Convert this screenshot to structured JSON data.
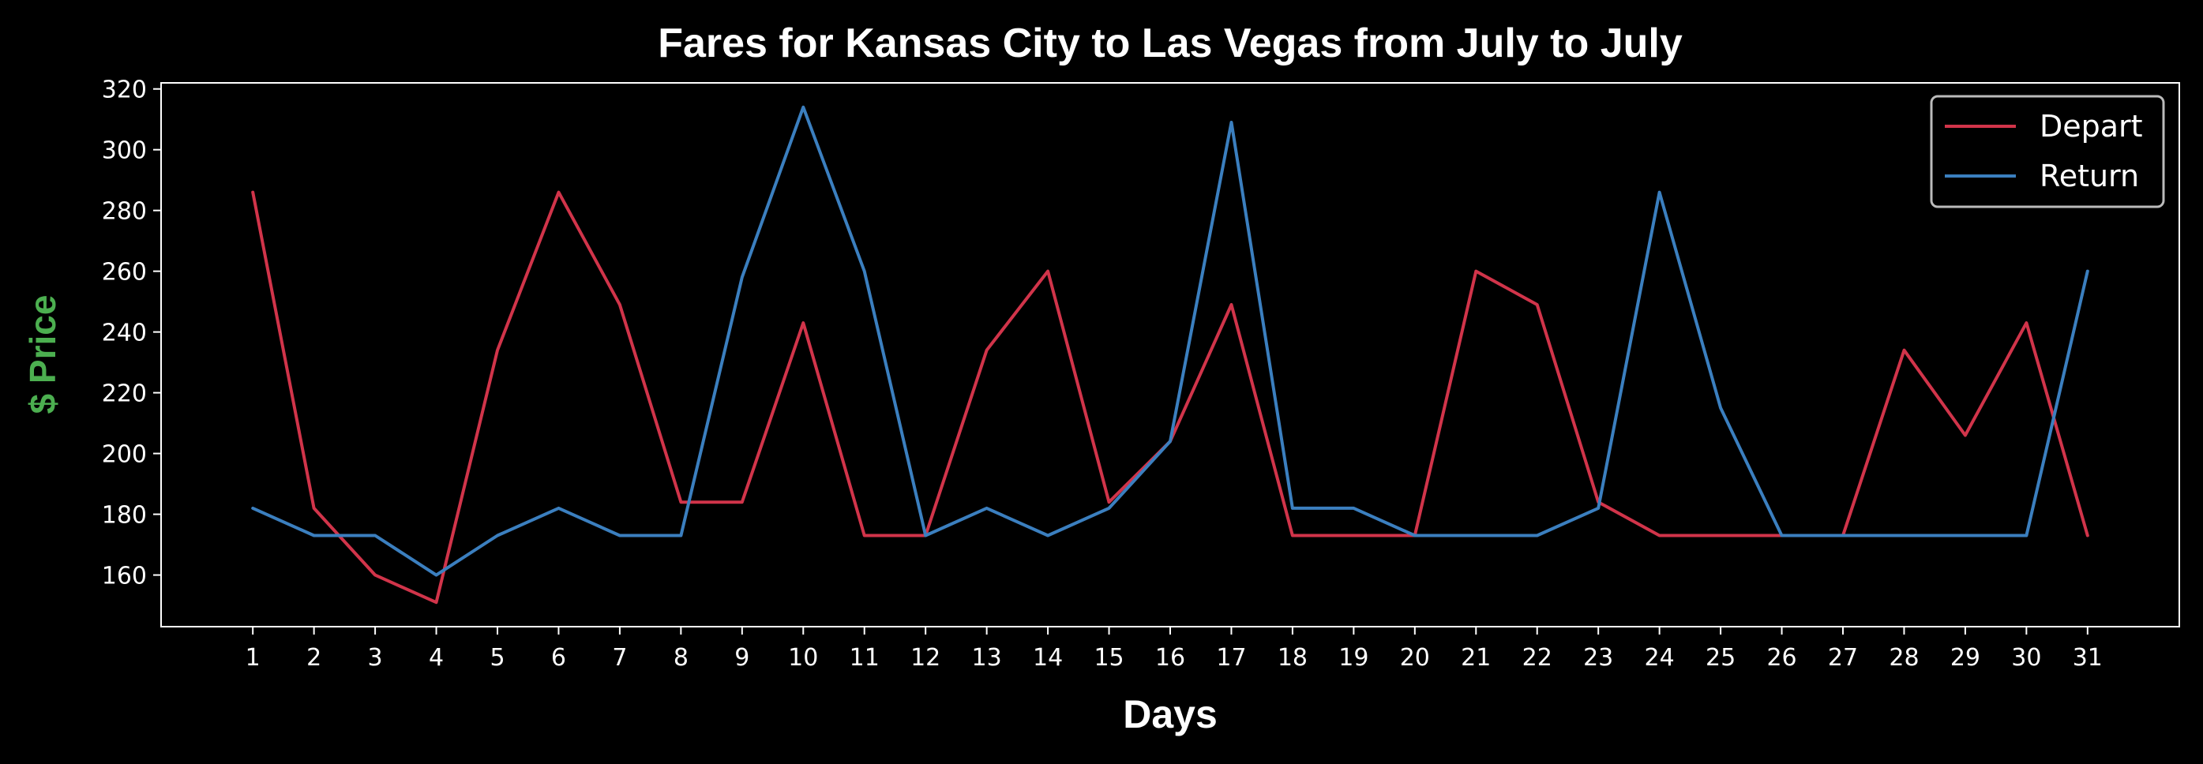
{
  "chart_data": {
    "type": "line",
    "title": "Fares for Kansas City to Las Vegas from July to July",
    "xlabel": "Days",
    "ylabel": "$ Price",
    "x": [
      1,
      2,
      3,
      4,
      5,
      6,
      7,
      8,
      9,
      10,
      11,
      12,
      13,
      14,
      15,
      16,
      17,
      18,
      19,
      20,
      21,
      22,
      23,
      24,
      25,
      26,
      27,
      28,
      29,
      30,
      31
    ],
    "yticks": [
      160,
      180,
      200,
      220,
      240,
      260,
      280,
      300,
      320
    ],
    "ylim": [
      143,
      322
    ],
    "xlim": [
      -0.5,
      32.5
    ],
    "grid": false,
    "legend_position": "top-right",
    "series": [
      {
        "name": "Depart",
        "color": "#d1344a",
        "values": [
          286,
          182,
          160,
          151,
          234,
          286,
          249,
          184,
          184,
          243,
          173,
          173,
          234,
          260,
          184,
          204,
          249,
          173,
          173,
          173,
          260,
          249,
          184,
          173,
          173,
          173,
          173,
          234,
          206,
          243,
          173
        ]
      },
      {
        "name": "Return",
        "color": "#3b7fbf",
        "values": [
          182,
          173,
          173,
          160,
          173,
          182,
          173,
          173,
          258,
          314,
          260,
          173,
          182,
          173,
          182,
          204,
          309,
          182,
          182,
          173,
          173,
          173,
          182,
          286,
          215,
          173,
          173,
          173,
          173,
          173,
          260
        ]
      }
    ],
    "colors": {
      "background": "#000000",
      "axes": "#ffffff",
      "ylabel": "#4caf50"
    }
  }
}
